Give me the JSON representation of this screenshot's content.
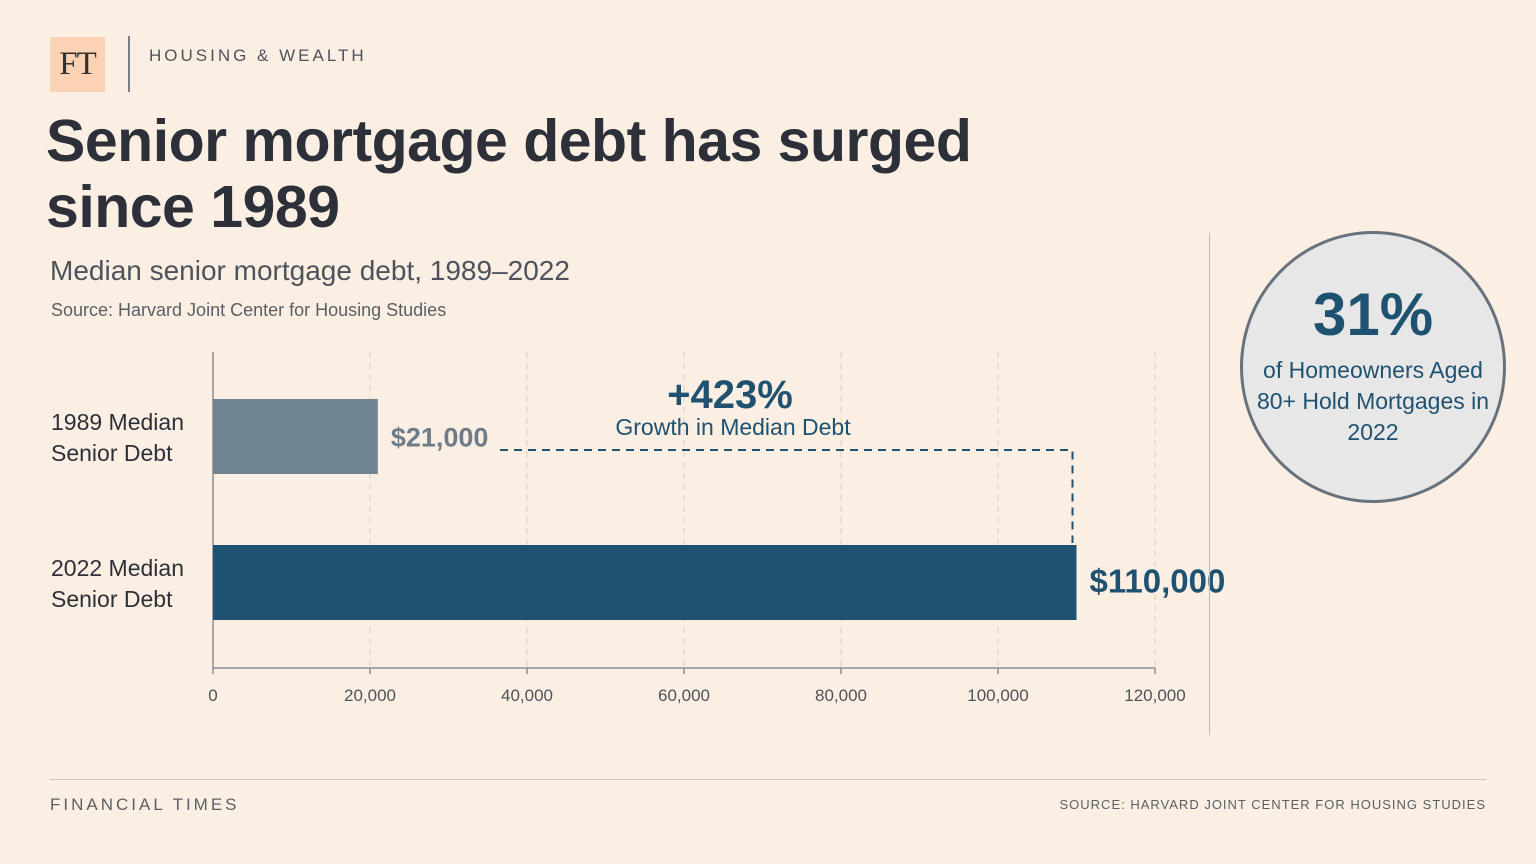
{
  "header": {
    "logo": "FT",
    "section": "HOUSING & WEALTH",
    "title": "Senior mortgage debt has surged since 1989",
    "subtitle": "Median senior mortgage debt, 1989–2022",
    "source": "Source: Harvard Joint Center for Housing Studies"
  },
  "annotation": {
    "value": "+423%",
    "label": "Growth in Median Debt"
  },
  "stat": {
    "value": "31%",
    "text": "of Homeowners Aged 80+ Hold Mortgages in 2022"
  },
  "footer": {
    "left": "FINANCIAL TIMES",
    "right": "SOURCE: HARVARD JOINT CENTER FOR HOUSING STUDIES"
  },
  "colors": {
    "background": "#fbefe3",
    "bar_1989": "#708391",
    "bar_2022": "#1f5271",
    "label_1989": "#6d7c88",
    "accent": "#1f5271",
    "gridline": "#d7cfc4"
  },
  "chart_data": {
    "type": "bar",
    "orientation": "horizontal",
    "categories": [
      "1989 Median Senior Debt",
      "2022 Median Senior Debt"
    ],
    "category_lines": [
      [
        "1989 Median",
        "Senior Debt"
      ],
      [
        "2022 Median",
        "Senior Debt"
      ]
    ],
    "values": [
      21000,
      110000
    ],
    "value_labels": [
      "$21,000",
      "$110,000"
    ],
    "xlim": [
      0,
      120000
    ],
    "xticks": [
      0,
      20000,
      40000,
      60000,
      80000,
      100000,
      120000
    ],
    "xtick_labels": [
      "0",
      "20,000",
      "40,000",
      "60,000",
      "80,000",
      "100,000",
      "120,000"
    ],
    "grid": "vertical dashed"
  }
}
